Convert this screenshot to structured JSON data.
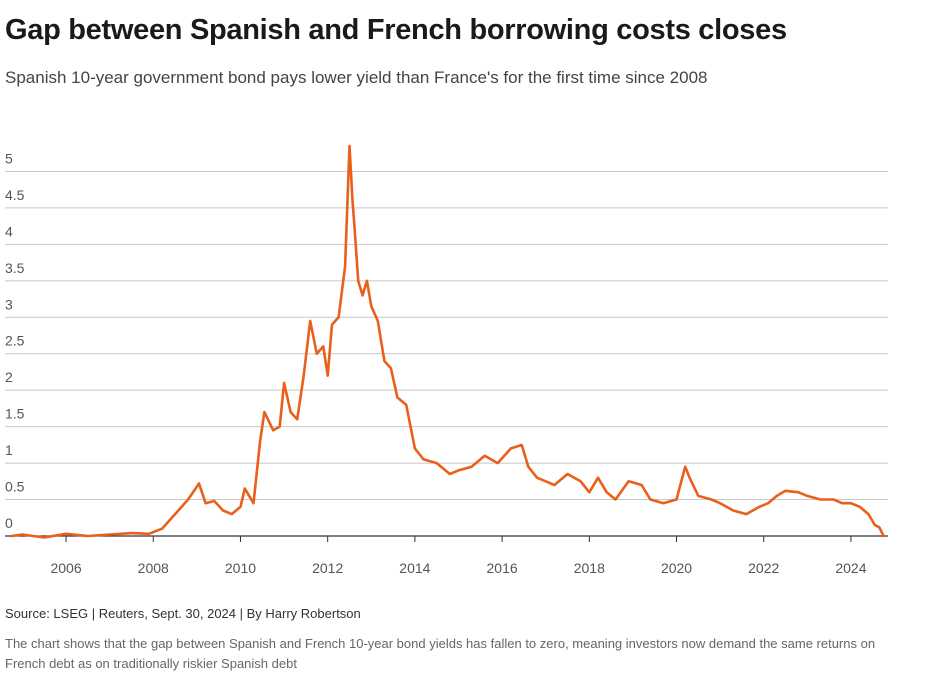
{
  "header": {
    "title": "Gap between Spanish and French borrowing costs closes",
    "subtitle": "Spanish 10-year government bond pays lower yield than France's for the first time since 2008"
  },
  "footer": {
    "source": "Source: LSEG | Reuters, Sept. 30, 2024 | By Harry Robertson",
    "description": "The chart shows that the gap between Spanish and French 10-year bond yields has fallen to zero, meaning investors now demand the same returns on French debt as on traditionally riskier Spanish debt"
  },
  "chart_data": {
    "type": "line",
    "title": "Gap between Spanish and French borrowing costs closes",
    "subtitle": "Spanish 10-year government bond pays lower yield than France's for the first time since 2008",
    "xlabel": "",
    "ylabel": "",
    "xlim": [
      2004.6,
      2024.85
    ],
    "ylim": [
      0,
      5.5
    ],
    "x_ticks": [
      "2006",
      "2008",
      "2010",
      "2012",
      "2014",
      "2016",
      "2018",
      "2020",
      "2022",
      "2024"
    ],
    "y_ticks": [
      "0",
      "0.5",
      "1",
      "1.5",
      "2",
      "2.5",
      "3",
      "3.5",
      "4",
      "4.5",
      "5"
    ],
    "grid": true,
    "line_color": "#e8601c",
    "series": [
      {
        "x": [
          2004.75,
          2005.0,
          2005.5,
          2006.0,
          2006.5,
          2007.0,
          2007.5,
          2007.9,
          2008.2,
          2008.5,
          2008.8,
          2009.05,
          2009.2,
          2009.4,
          2009.6,
          2009.8,
          2010.0,
          2010.1,
          2010.3,
          2010.45,
          2010.55,
          2010.75,
          2010.9,
          2011.0,
          2011.15,
          2011.3,
          2011.45,
          2011.6,
          2011.75,
          2011.9,
          2012.0,
          2012.1,
          2012.25,
          2012.4,
          2012.5,
          2012.57,
          2012.62,
          2012.7,
          2012.8,
          2012.9,
          2013.0,
          2013.15,
          2013.3,
          2013.45,
          2013.6,
          2013.8,
          2014.0,
          2014.2,
          2014.5,
          2014.8,
          2015.0,
          2015.3,
          2015.6,
          2015.9,
          2016.2,
          2016.45,
          2016.6,
          2016.8,
          2017.0,
          2017.2,
          2017.5,
          2017.8,
          2018.0,
          2018.2,
          2018.4,
          2018.6,
          2018.9,
          2019.2,
          2019.4,
          2019.7,
          2020.0,
          2020.2,
          2020.3,
          2020.5,
          2020.8,
          2021.0,
          2021.3,
          2021.6,
          2021.9,
          2022.1,
          2022.3,
          2022.5,
          2022.8,
          2023.0,
          2023.3,
          2023.6,
          2023.8,
          2024.0,
          2024.2,
          2024.4,
          2024.55,
          2024.65,
          2024.75
        ],
        "y": [
          0.0,
          0.02,
          -0.02,
          0.03,
          0.0,
          0.02,
          0.04,
          0.03,
          0.1,
          0.3,
          0.5,
          0.72,
          0.45,
          0.48,
          0.35,
          0.3,
          0.4,
          0.65,
          0.45,
          1.3,
          1.7,
          1.45,
          1.5,
          2.1,
          1.7,
          1.6,
          2.2,
          2.95,
          2.5,
          2.6,
          2.2,
          2.9,
          3.0,
          3.7,
          5.35,
          4.6,
          4.2,
          3.5,
          3.3,
          3.5,
          3.15,
          2.95,
          2.4,
          2.3,
          1.9,
          1.8,
          1.2,
          1.05,
          1.0,
          0.85,
          0.9,
          0.95,
          1.1,
          1.0,
          1.2,
          1.25,
          0.95,
          0.8,
          0.75,
          0.7,
          0.85,
          0.75,
          0.6,
          0.8,
          0.6,
          0.5,
          0.75,
          0.7,
          0.5,
          0.45,
          0.5,
          0.95,
          0.8,
          0.55,
          0.5,
          0.45,
          0.35,
          0.3,
          0.4,
          0.45,
          0.55,
          0.62,
          0.6,
          0.55,
          0.5,
          0.5,
          0.45,
          0.45,
          0.4,
          0.3,
          0.15,
          0.12,
          0.0
        ]
      }
    ]
  }
}
